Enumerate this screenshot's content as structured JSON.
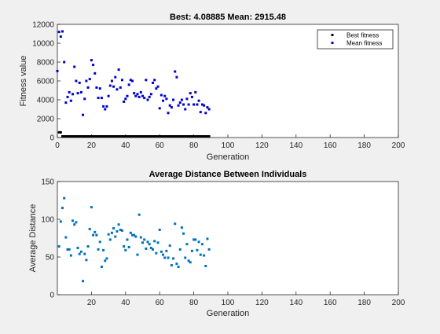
{
  "window": {
    "background": "#f0f0f0"
  },
  "chart_data": [
    {
      "type": "scatter",
      "title": "Best: 4.08885 Mean: 2915.48",
      "xlabel": "Generation",
      "ylabel": "Fitness value",
      "xlim": [
        0,
        200
      ],
      "ylim": [
        0,
        12000
      ],
      "xticks": [
        "0",
        "20",
        "40",
        "60",
        "80",
        "100",
        "120",
        "140",
        "160",
        "180",
        "200"
      ],
      "yticks": [
        "0",
        "2000",
        "4000",
        "6000",
        "8000",
        "10000",
        "12000"
      ],
      "grid": false,
      "legend": {
        "placement": "top-right",
        "entries": [
          "Best fitness",
          "Mean fitness"
        ]
      },
      "series": [
        {
          "name": "Best fitness",
          "color": "#000000",
          "points": [
            [
              1,
              550
            ],
            [
              2,
              550
            ],
            [
              3,
              60
            ],
            [
              4,
              40
            ],
            [
              5,
              30
            ],
            [
              6,
              20
            ],
            [
              7,
              15
            ],
            [
              8,
              12
            ],
            [
              9,
              10
            ],
            [
              10,
              10
            ],
            [
              11,
              9
            ],
            [
              12,
              9
            ],
            [
              13,
              8
            ],
            [
              14,
              8
            ],
            [
              15,
              8
            ],
            [
              16,
              7
            ],
            [
              17,
              7
            ],
            [
              18,
              7
            ],
            [
              19,
              6
            ],
            [
              20,
              6
            ],
            [
              21,
              6
            ],
            [
              22,
              6
            ],
            [
              23,
              6
            ],
            [
              24,
              5
            ],
            [
              25,
              5
            ],
            [
              26,
              5
            ],
            [
              27,
              5
            ],
            [
              28,
              5
            ],
            [
              29,
              5
            ],
            [
              30,
              5
            ],
            [
              31,
              5
            ],
            [
              32,
              5
            ],
            [
              33,
              5
            ],
            [
              34,
              5
            ],
            [
              35,
              5
            ],
            [
              36,
              5
            ],
            [
              37,
              5
            ],
            [
              38,
              5
            ],
            [
              39,
              5
            ],
            [
              40,
              5
            ],
            [
              41,
              5
            ],
            [
              42,
              5
            ],
            [
              43,
              5
            ],
            [
              44,
              5
            ],
            [
              45,
              5
            ],
            [
              46,
              5
            ],
            [
              47,
              5
            ],
            [
              48,
              5
            ],
            [
              49,
              5
            ],
            [
              50,
              5
            ],
            [
              51,
              5
            ],
            [
              52,
              5
            ],
            [
              53,
              5
            ],
            [
              54,
              5
            ],
            [
              55,
              5
            ],
            [
              56,
              5
            ],
            [
              57,
              5
            ],
            [
              58,
              5
            ],
            [
              59,
              5
            ],
            [
              60,
              4.5
            ],
            [
              61,
              4.5
            ],
            [
              62,
              4.5
            ],
            [
              63,
              4.5
            ],
            [
              64,
              4.5
            ],
            [
              65,
              4.5
            ],
            [
              66,
              4.5
            ],
            [
              67,
              4.5
            ],
            [
              68,
              4.5
            ],
            [
              69,
              4.5
            ],
            [
              70,
              4.5
            ],
            [
              71,
              4.5
            ],
            [
              72,
              4.5
            ],
            [
              73,
              4.5
            ],
            [
              74,
              4.5
            ],
            [
              75,
              4.5
            ],
            [
              76,
              4.5
            ],
            [
              77,
              4.5
            ],
            [
              78,
              4.5
            ],
            [
              79,
              4.5
            ],
            [
              80,
              4.5
            ],
            [
              81,
              4.5
            ],
            [
              82,
              4.5
            ],
            [
              83,
              4.5
            ],
            [
              84,
              4.5
            ],
            [
              85,
              4.5
            ],
            [
              86,
              4.5
            ],
            [
              87,
              4.5
            ],
            [
              88,
              4.2
            ],
            [
              89,
              4.09
            ]
          ]
        },
        {
          "name": "Mean fitness",
          "color": "#0000cc",
          "points": [
            [
              0,
              7050
            ],
            [
              1,
              11200
            ],
            [
              2,
              10700
            ],
            [
              3,
              11250
            ],
            [
              4,
              8000
            ],
            [
              5,
              3700
            ],
            [
              6,
              4300
            ],
            [
              7,
              4800
            ],
            [
              8,
              3900
            ],
            [
              9,
              4600
            ],
            [
              10,
              7500
            ],
            [
              11,
              6000
            ],
            [
              12,
              4700
            ],
            [
              13,
              5800
            ],
            [
              14,
              4800
            ],
            [
              15,
              2400
            ],
            [
              16,
              4100
            ],
            [
              17,
              6000
            ],
            [
              18,
              5300
            ],
            [
              19,
              6200
            ],
            [
              20,
              8200
            ],
            [
              21,
              7700
            ],
            [
              22,
              6800
            ],
            [
              23,
              5300
            ],
            [
              24,
              4200
            ],
            [
              25,
              5200
            ],
            [
              26,
              4200
            ],
            [
              27,
              3300
            ],
            [
              28,
              3000
            ],
            [
              29,
              3300
            ],
            [
              30,
              4400
            ],
            [
              31,
              5500
            ],
            [
              32,
              6000
            ],
            [
              33,
              5400
            ],
            [
              34,
              6400
            ],
            [
              35,
              5100
            ],
            [
              36,
              7200
            ],
            [
              37,
              5300
            ],
            [
              38,
              6100
            ],
            [
              39,
              3800
            ],
            [
              40,
              4100
            ],
            [
              41,
              4400
            ],
            [
              42,
              5600
            ],
            [
              43,
              6100
            ],
            [
              44,
              6000
            ],
            [
              45,
              4700
            ],
            [
              46,
              4400
            ],
            [
              47,
              4600
            ],
            [
              48,
              4300
            ],
            [
              49,
              4800
            ],
            [
              50,
              4400
            ],
            [
              51,
              4200
            ],
            [
              52,
              6100
            ],
            [
              53,
              4000
            ],
            [
              54,
              4300
            ],
            [
              55,
              4600
            ],
            [
              56,
              5800
            ],
            [
              57,
              6100
            ],
            [
              58,
              5200
            ],
            [
              59,
              5400
            ],
            [
              60,
              3100
            ],
            [
              61,
              4500
            ],
            [
              62,
              3900
            ],
            [
              63,
              4400
            ],
            [
              64,
              4100
            ],
            [
              65,
              2600
            ],
            [
              66,
              3400
            ],
            [
              67,
              3200
            ],
            [
              68,
              4000
            ],
            [
              69,
              7000
            ],
            [
              70,
              6400
            ],
            [
              71,
              3400
            ],
            [
              72,
              3700
            ],
            [
              73,
              4000
            ],
            [
              74,
              3500
            ],
            [
              75,
              3000
            ],
            [
              76,
              4100
            ],
            [
              77,
              3500
            ],
            [
              78,
              4700
            ],
            [
              79,
              4300
            ],
            [
              80,
              3500
            ],
            [
              81,
              4800
            ],
            [
              82,
              3500
            ],
            [
              83,
              3900
            ],
            [
              84,
              2700
            ],
            [
              85,
              3500
            ],
            [
              86,
              3400
            ],
            [
              87,
              2600
            ],
            [
              88,
              3200
            ],
            [
              89,
              3000
            ]
          ]
        }
      ]
    },
    {
      "type": "scatter",
      "title": "Average Distance Between Individuals",
      "xlabel": "Generation",
      "ylabel": "Average Distance",
      "xlim": [
        0,
        200
      ],
      "ylim": [
        0,
        150
      ],
      "xticks": [
        "20",
        "40",
        "60",
        "80",
        "100",
        "120",
        "140",
        "160",
        "180",
        "200"
      ],
      "yticks": [
        "0",
        "50",
        "100",
        "150"
      ],
      "grid": false,
      "series": [
        {
          "color": "#0072bd",
          "points": [
            [
              1,
              64
            ],
            [
              2,
              97
            ],
            [
              3,
              115
            ],
            [
              4,
              128
            ],
            [
              5,
              76
            ],
            [
              6,
              60
            ],
            [
              7,
              60
            ],
            [
              8,
              52
            ],
            [
              9,
              98
            ],
            [
              10,
              93
            ],
            [
              11,
              96
            ],
            [
              12,
              62
            ],
            [
              13,
              54
            ],
            [
              14,
              57
            ],
            [
              15,
              18
            ],
            [
              16,
              54
            ],
            [
              17,
              46
            ],
            [
              18,
              64
            ],
            [
              19,
              87
            ],
            [
              20,
              116
            ],
            [
              21,
              79
            ],
            [
              22,
              83
            ],
            [
              23,
              79
            ],
            [
              24,
              60
            ],
            [
              25,
              70
            ],
            [
              26,
              37
            ],
            [
              27,
              59
            ],
            [
              28,
              45
            ],
            [
              29,
              48
            ],
            [
              30,
              80
            ],
            [
              31,
              73
            ],
            [
              32,
              82
            ],
            [
              33,
              88
            ],
            [
              34,
              77
            ],
            [
              35,
              84
            ],
            [
              36,
              93
            ],
            [
              37,
              86
            ],
            [
              38,
              85
            ],
            [
              39,
              64
            ],
            [
              40,
              59
            ],
            [
              41,
              73
            ],
            [
              42,
              63
            ],
            [
              43,
              82
            ],
            [
              44,
              79
            ],
            [
              45,
              79
            ],
            [
              46,
              77
            ],
            [
              47,
              53
            ],
            [
              48,
              106
            ],
            [
              49,
              76
            ],
            [
              50,
              69
            ],
            [
              51,
              73
            ],
            [
              52,
              61
            ],
            [
              53,
              70
            ],
            [
              54,
              67
            ],
            [
              55,
              62
            ],
            [
              56,
              60
            ],
            [
              57,
              71
            ],
            [
              58,
              55
            ],
            [
              59,
              69
            ],
            [
              60,
              86
            ],
            [
              61,
              57
            ],
            [
              62,
              53
            ],
            [
              63,
              49
            ],
            [
              64,
              58
            ],
            [
              65,
              49
            ],
            [
              66,
              65
            ],
            [
              67,
              39
            ],
            [
              68,
              48
            ],
            [
              69,
              94
            ],
            [
              70,
              41
            ],
            [
              71,
              37
            ],
            [
              72,
              60
            ],
            [
              73,
              89
            ],
            [
              74,
              81
            ],
            [
              75,
              49
            ],
            [
              76,
              67
            ],
            [
              77,
              45
            ],
            [
              78,
              43
            ],
            [
              79,
              58
            ],
            [
              80,
              73
            ],
            [
              81,
              73
            ],
            [
              82,
              59
            ],
            [
              83,
              70
            ],
            [
              84,
              53
            ],
            [
              85,
              67
            ],
            [
              86,
              52
            ],
            [
              87,
              38
            ],
            [
              88,
              74
            ],
            [
              89,
              60
            ]
          ]
        }
      ]
    }
  ]
}
